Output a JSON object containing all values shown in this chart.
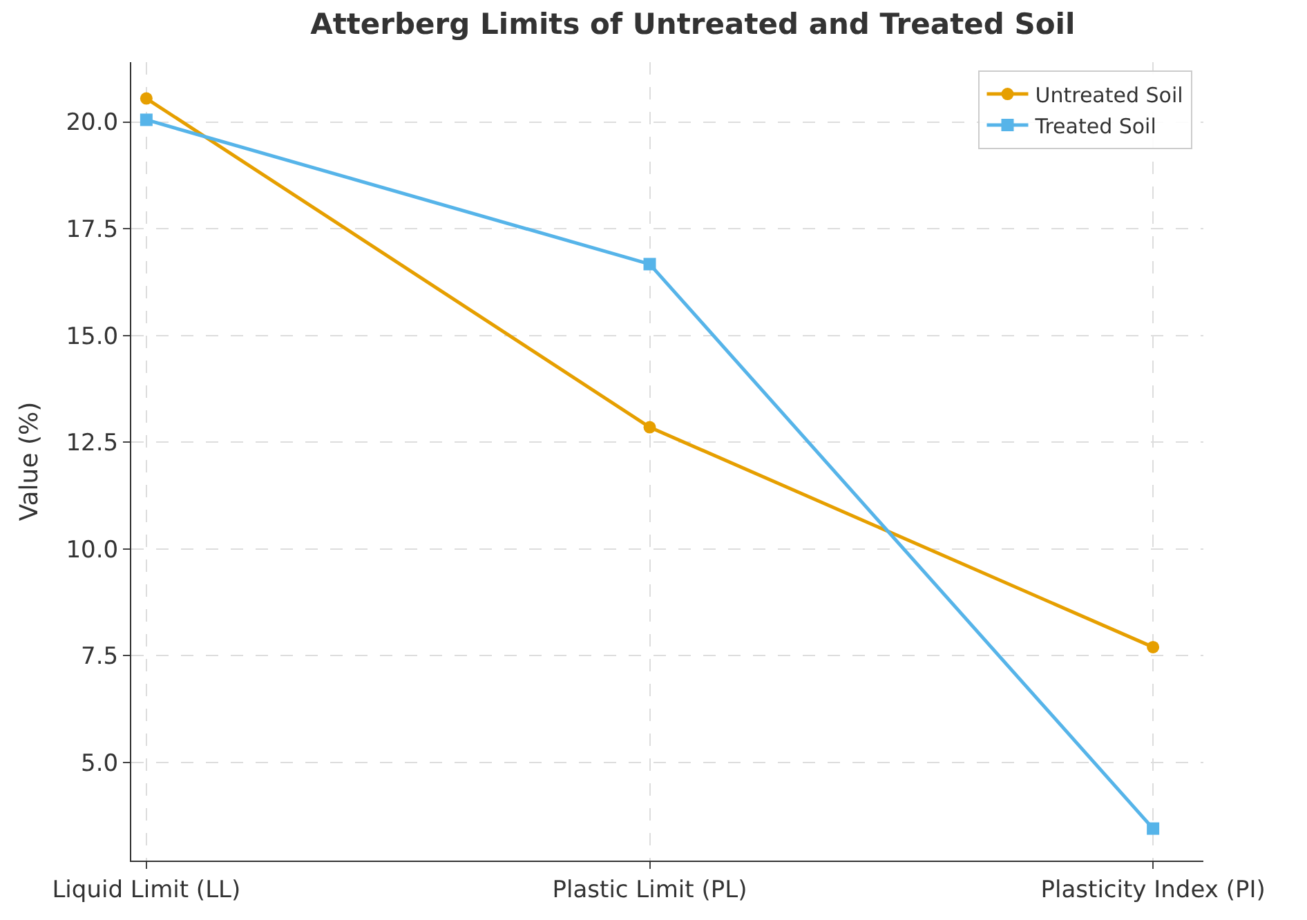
{
  "chart_data": {
    "type": "line",
    "title": "Atterberg Limits of Untreated and Treated Soil",
    "ylabel": "Value (%)",
    "categories": [
      "Liquid Limit (LL)",
      "Plastic Limit (PL)",
      "Plasticity Index (PI)"
    ],
    "series": [
      {
        "name": "Untreated Soil",
        "color": "#e69f00",
        "marker": "circle",
        "values": [
          20.55,
          12.85,
          7.7
        ]
      },
      {
        "name": "Treated Soil",
        "color": "#56b4e9",
        "marker": "square",
        "values": [
          20.05,
          16.67,
          3.45
        ]
      }
    ],
    "ylim": [
      2.7,
      21.4
    ],
    "yticks": [
      {
        "value": 5,
        "label": "5.0"
      },
      {
        "value": 7.5,
        "label": "7.5"
      },
      {
        "value": 10,
        "label": "10.0"
      },
      {
        "value": 12.5,
        "label": "12.5"
      },
      {
        "value": 15,
        "label": "15.0"
      },
      {
        "value": 17.5,
        "label": "17.5"
      },
      {
        "value": 20,
        "label": "20.0"
      }
    ],
    "grid": true,
    "legend": "top right",
    "line_style": "solid"
  }
}
